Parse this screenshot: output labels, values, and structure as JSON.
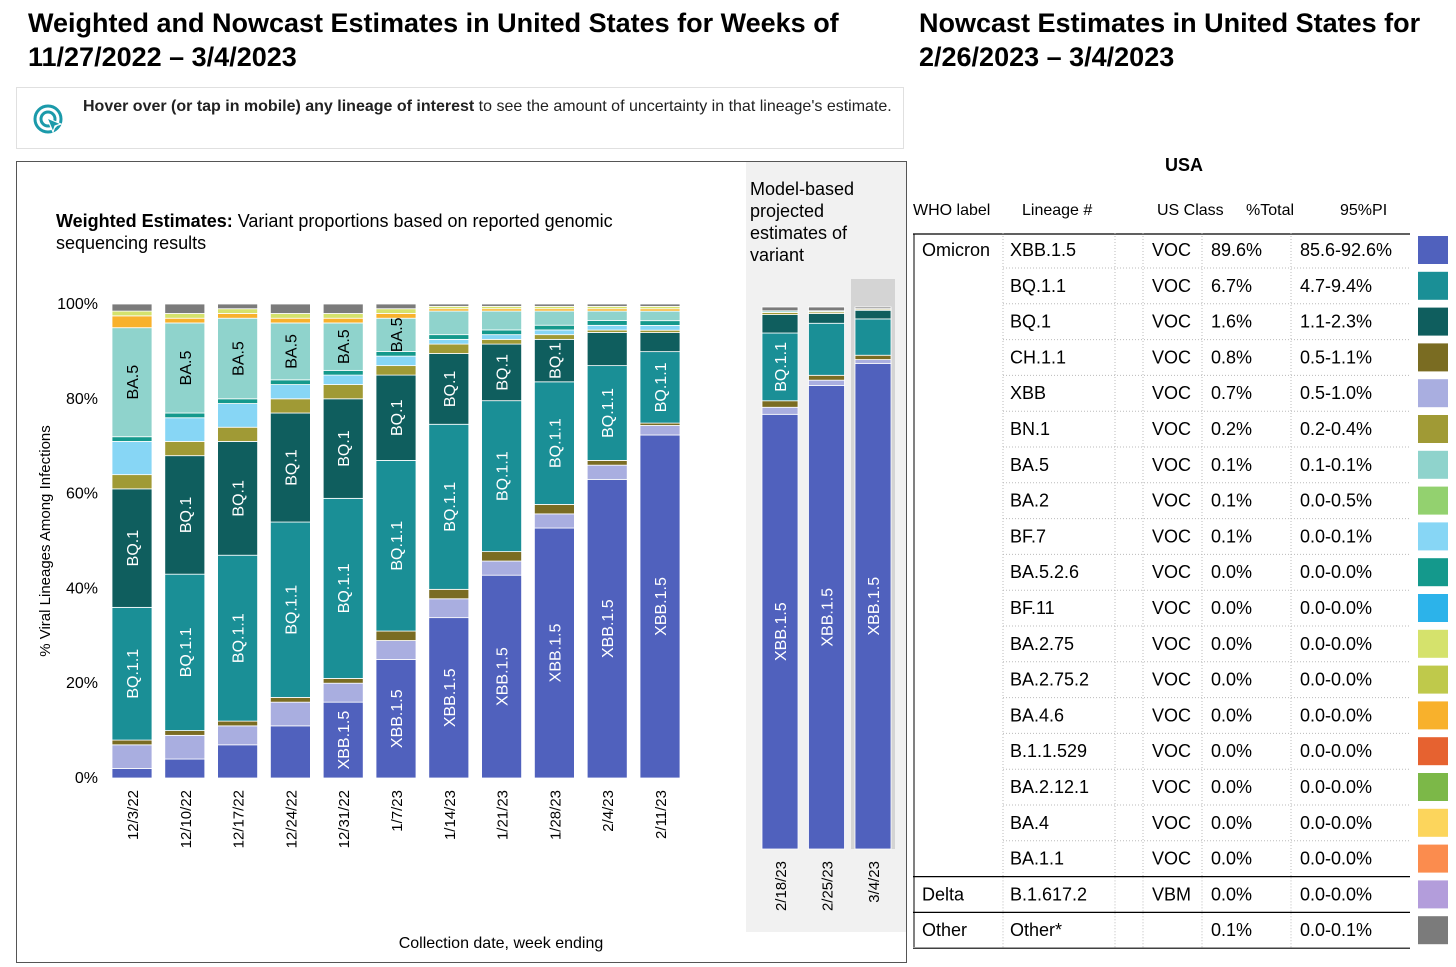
{
  "left_title": "Weighted and Nowcast Estimates in United States for Weeks of 11/27/2022 – 3/4/2023",
  "right_title": "Nowcast Estimates in United States for 2/26/2023 – 3/4/2023",
  "hover_bold": "Hover over (or tap in mobile) any lineage of interest",
  "hover_rest": " to see the amount of uncertainty in that lineage's estimate.",
  "colors": {
    "XBB.1.5": "#5061bd",
    "XBB": "#a9aee0",
    "CH.1.1": "#7a6c22",
    "BQ.1.1": "#1a8f96",
    "BQ.1": "#0f5e5e",
    "BN.1": "#a09a35",
    "BA.5": "#8fd3cc",
    "BA.2": "#93d16f",
    "BF.7": "#87d6f5",
    "BA.5.2.6": "#14998c",
    "BF.11": "#2cb3ea",
    "BA.2.75": "#d5e26c",
    "BA.2.75.2": "#bfc94b",
    "BA.4.6": "#f8b12c",
    "B.1.1.529": "#e66230",
    "BA.2.12.1": "#7cb848",
    "BA.4": "#fcd55c",
    "BA.1.1": "#fb8c4e",
    "B.1.617.2": "#b39ddb",
    "Other": "#7b7b7b"
  },
  "chart_data": [
    {
      "type": "bar",
      "stacked": true,
      "title": "Weighted Estimates:",
      "subtitle": "Variant proportions based on reported genomic sequencing results",
      "ylabel": "% Viral Lineages Among Infections",
      "xlabel": "Collection date, week ending",
      "ylim": [
        0,
        100
      ],
      "y_ticks": [
        "0%",
        "20%",
        "40%",
        "60%",
        "80%",
        "100%"
      ],
      "categories": [
        "12/3/22",
        "12/10/22",
        "12/17/22",
        "12/24/22",
        "12/31/22",
        "1/7/23",
        "1/14/23",
        "1/21/23",
        "1/28/23",
        "2/4/23",
        "2/11/23"
      ],
      "series": [
        {
          "name": "XBB.1.5",
          "values": [
            2,
            4,
            7,
            11,
            16,
            25,
            34,
            43,
            53,
            63,
            72
          ]
        },
        {
          "name": "XBB",
          "values": [
            5,
            5,
            4,
            5,
            4,
            4,
            4,
            3,
            3,
            3,
            2
          ]
        },
        {
          "name": "CH.1.1",
          "values": [
            1,
            1,
            1,
            1,
            1,
            2,
            2,
            2,
            2,
            1,
            0.5
          ]
        },
        {
          "name": "BQ.1.1",
          "values": [
            28,
            33,
            35,
            37,
            38,
            36,
            35,
            32,
            26,
            20,
            15
          ]
        },
        {
          "name": "BQ.1",
          "values": [
            25,
            25,
            24,
            23,
            21,
            18,
            15,
            12,
            9,
            7,
            4
          ]
        },
        {
          "name": "BN.1",
          "values": [
            3,
            3,
            3,
            3,
            3,
            2,
            2,
            1,
            1,
            0.5,
            0.5
          ]
        },
        {
          "name": "BF.7",
          "values": [
            7,
            5,
            5,
            3,
            2,
            2,
            1,
            1,
            1,
            1,
            1
          ]
        },
        {
          "name": "BA.5.2.6",
          "values": [
            1,
            1,
            1,
            1,
            1,
            1,
            1,
            1,
            1,
            1,
            1
          ]
        },
        {
          "name": "BA.5",
          "values": [
            23,
            19,
            17,
            12,
            10,
            7,
            5,
            4,
            3,
            2,
            2
          ]
        },
        {
          "name": "BA.4.6",
          "values": [
            2.5,
            1,
            1,
            1,
            1,
            1,
            0.5,
            0.5,
            0.5,
            0.5,
            0.5
          ]
        },
        {
          "name": "BA.2.75",
          "values": [
            1,
            1,
            1,
            1,
            1,
            1,
            0.5,
            0.5,
            0.5,
            0.5,
            0.5
          ]
        },
        {
          "name": "Other",
          "values": [
            1.5,
            2,
            1,
            2,
            2,
            1,
            0.5,
            0.5,
            0.5,
            0.5,
            0.5
          ]
        }
      ],
      "bar_labels": [
        {
          "cat": "12/3/22",
          "series": "BQ.1.1",
          "text": "BQ.1.1"
        },
        {
          "cat": "12/3/22",
          "series": "BQ.1",
          "text": "BQ.1"
        },
        {
          "cat": "12/3/22",
          "series": "BA.5",
          "text": "BA.5"
        },
        {
          "cat": "12/10/22",
          "series": "BQ.1.1",
          "text": "BQ.1.1"
        },
        {
          "cat": "12/10/22",
          "series": "BQ.1",
          "text": "BQ.1"
        },
        {
          "cat": "12/10/22",
          "series": "BA.5",
          "text": "BA.5"
        },
        {
          "cat": "12/17/22",
          "series": "BQ.1.1",
          "text": "BQ.1.1"
        },
        {
          "cat": "12/17/22",
          "series": "BQ.1",
          "text": "BQ.1"
        },
        {
          "cat": "12/17/22",
          "series": "BA.5",
          "text": "BA.5"
        },
        {
          "cat": "12/24/22",
          "series": "BQ.1.1",
          "text": "BQ.1.1"
        },
        {
          "cat": "12/24/22",
          "series": "BQ.1",
          "text": "BQ.1"
        },
        {
          "cat": "12/24/22",
          "series": "BA.5",
          "text": "BA.5"
        },
        {
          "cat": "12/31/22",
          "series": "XBB.1.5",
          "text": "XBB.1.5"
        },
        {
          "cat": "12/31/22",
          "series": "BQ.1.1",
          "text": "BQ.1.1"
        },
        {
          "cat": "12/31/22",
          "series": "BQ.1",
          "text": "BQ.1"
        },
        {
          "cat": "12/31/22",
          "series": "BA.5",
          "text": "BA.5"
        },
        {
          "cat": "1/7/23",
          "series": "XBB.1.5",
          "text": "XBB.1.5"
        },
        {
          "cat": "1/7/23",
          "series": "BQ.1.1",
          "text": "BQ.1.1"
        },
        {
          "cat": "1/7/23",
          "series": "BQ.1",
          "text": "BQ.1"
        },
        {
          "cat": "1/7/23",
          "series": "BA.5",
          "text": "BA.5"
        },
        {
          "cat": "1/14/23",
          "series": "XBB.1.5",
          "text": "XBB.1.5"
        },
        {
          "cat": "1/14/23",
          "series": "BQ.1.1",
          "text": "BQ.1.1"
        },
        {
          "cat": "1/14/23",
          "series": "BQ.1",
          "text": "BQ.1"
        },
        {
          "cat": "1/21/23",
          "series": "XBB.1.5",
          "text": "XBB.1.5"
        },
        {
          "cat": "1/21/23",
          "series": "BQ.1.1",
          "text": "BQ.1.1"
        },
        {
          "cat": "1/21/23",
          "series": "BQ.1",
          "text": "BQ.1"
        },
        {
          "cat": "1/28/23",
          "series": "XBB.1.5",
          "text": "XBB.1.5"
        },
        {
          "cat": "1/28/23",
          "series": "BQ.1.1",
          "text": "BQ.1.1"
        },
        {
          "cat": "1/28/23",
          "series": "BQ.1",
          "text": "BQ.1"
        },
        {
          "cat": "2/4/23",
          "series": "XBB.1.5",
          "text": "XBB.1.5"
        },
        {
          "cat": "2/4/23",
          "series": "BQ.1.1",
          "text": "BQ.1.1"
        },
        {
          "cat": "2/11/23",
          "series": "XBB.1.5",
          "text": "XBB.1.5"
        },
        {
          "cat": "2/11/23",
          "series": "BQ.1.1",
          "text": "BQ.1.1"
        }
      ]
    },
    {
      "type": "bar",
      "stacked": true,
      "title": "Model-based projected estimates of variant",
      "ylim": [
        0,
        100
      ],
      "categories": [
        "2/18/23",
        "2/25/23",
        "3/4/23"
      ],
      "series": [
        {
          "name": "XBB.1.5",
          "values": [
            80.2,
            85.5,
            89.6
          ]
        },
        {
          "name": "XBB",
          "values": [
            1.3,
            1.0,
            0.7
          ]
        },
        {
          "name": "CH.1.1",
          "values": [
            1.2,
            0.9,
            0.8
          ]
        },
        {
          "name": "BQ.1.1",
          "values": [
            12.5,
            9.6,
            6.7
          ]
        },
        {
          "name": "BQ.1",
          "values": [
            3.4,
            1.8,
            1.6
          ]
        },
        {
          "name": "BN.1",
          "values": [
            0.4,
            0.3,
            0.2
          ]
        },
        {
          "name": "BA.5",
          "values": [
            0.3,
            0.2,
            0.1
          ]
        },
        {
          "name": "Other",
          "values": [
            0.7,
            0.7,
            0.3
          ]
        }
      ],
      "highlighted_category": "3/4/23",
      "bar_labels": [
        {
          "cat": "2/18/23",
          "series": "XBB.1.5",
          "text": "XBB.1.5"
        },
        {
          "cat": "2/18/23",
          "series": "BQ.1.1",
          "text": "BQ.1.1"
        },
        {
          "cat": "2/25/23",
          "series": "XBB.1.5",
          "text": "XBB.1.5"
        },
        {
          "cat": "3/4/23",
          "series": "XBB.1.5",
          "text": "XBB.1.5"
        }
      ]
    },
    {
      "type": "table",
      "title": "USA",
      "columns": [
        "WHO label",
        "Lineage #",
        "US Class",
        "%Total",
        "95%PI"
      ],
      "groups": [
        {
          "who": "Omicron",
          "rows": [
            {
              "lineage": "XBB.1.5",
              "class": "VOC",
              "total": "89.6%",
              "pi": "85.6-92.6%"
            },
            {
              "lineage": "BQ.1.1",
              "class": "VOC",
              "total": "6.7%",
              "pi": "4.7-9.4%"
            },
            {
              "lineage": "BQ.1",
              "class": "VOC",
              "total": "1.6%",
              "pi": "1.1-2.3%"
            },
            {
              "lineage": "CH.1.1",
              "class": "VOC",
              "total": "0.8%",
              "pi": "0.5-1.1%"
            },
            {
              "lineage": "XBB",
              "class": "VOC",
              "total": "0.7%",
              "pi": "0.5-1.0%"
            },
            {
              "lineage": "BN.1",
              "class": "VOC",
              "total": "0.2%",
              "pi": "0.2-0.4%"
            },
            {
              "lineage": "BA.5",
              "class": "VOC",
              "total": "0.1%",
              "pi": "0.1-0.1%"
            },
            {
              "lineage": "BA.2",
              "class": "VOC",
              "total": "0.1%",
              "pi": "0.0-0.5%"
            },
            {
              "lineage": "BF.7",
              "class": "VOC",
              "total": "0.1%",
              "pi": "0.0-0.1%"
            },
            {
              "lineage": "BA.5.2.6",
              "class": "VOC",
              "total": "0.0%",
              "pi": "0.0-0.0%"
            },
            {
              "lineage": "BF.11",
              "class": "VOC",
              "total": "0.0%",
              "pi": "0.0-0.0%"
            },
            {
              "lineage": "BA.2.75",
              "class": "VOC",
              "total": "0.0%",
              "pi": "0.0-0.0%"
            },
            {
              "lineage": "BA.2.75.2",
              "class": "VOC",
              "total": "0.0%",
              "pi": "0.0-0.0%"
            },
            {
              "lineage": "BA.4.6",
              "class": "VOC",
              "total": "0.0%",
              "pi": "0.0-0.0%"
            },
            {
              "lineage": "B.1.1.529",
              "class": "VOC",
              "total": "0.0%",
              "pi": "0.0-0.0%"
            },
            {
              "lineage": "BA.2.12.1",
              "class": "VOC",
              "total": "0.0%",
              "pi": "0.0-0.0%"
            },
            {
              "lineage": "BA.4",
              "class": "VOC",
              "total": "0.0%",
              "pi": "0.0-0.0%"
            },
            {
              "lineage": "BA.1.1",
              "class": "VOC",
              "total": "0.0%",
              "pi": "0.0-0.0%"
            }
          ]
        },
        {
          "who": "Delta",
          "rows": [
            {
              "lineage": "B.1.617.2",
              "class": "VBM",
              "total": "0.0%",
              "pi": "0.0-0.0%"
            }
          ]
        },
        {
          "who": "Other",
          "rows": [
            {
              "lineage": "Other*",
              "class": "",
              "total": "0.1%",
              "pi": "0.0-0.1%",
              "color_key": "Other"
            }
          ]
        }
      ]
    }
  ]
}
